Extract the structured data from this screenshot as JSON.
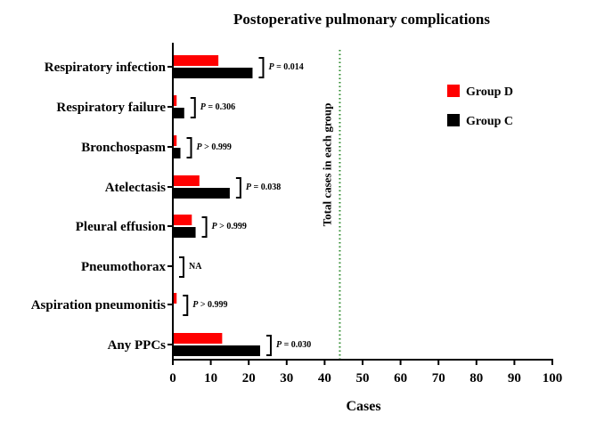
{
  "chart_data": {
    "type": "bar",
    "orientation": "horizontal",
    "title": "Postoperative pulmonary complications",
    "xlabel": "Cases",
    "ylabel": "",
    "xlim": [
      0,
      100
    ],
    "xticks": [
      0,
      10,
      20,
      30,
      40,
      50,
      60,
      70,
      80,
      90,
      100
    ],
    "categories": [
      "Respiratory infection",
      "Respiratory failure",
      "Bronchospasm",
      "Atelectasis",
      "Pleural effusion",
      "Pneumothorax",
      "Aspiration pneumonitis",
      "Any PPCs"
    ],
    "series": [
      {
        "name": "Group D",
        "color": "#ff0000",
        "values": [
          12,
          1,
          1,
          7,
          5,
          0,
          1,
          13
        ]
      },
      {
        "name": "Group C",
        "color": "#000000",
        "values": [
          21,
          3,
          2,
          15,
          6,
          0,
          0,
          23
        ]
      }
    ],
    "p_values": [
      {
        "italic": "P",
        "rest": " = 0.014"
      },
      {
        "italic": "P",
        "rest": " = 0.306"
      },
      {
        "italic": "P",
        "rest": " > 0.999"
      },
      {
        "italic": "P",
        "rest": " = 0.038"
      },
      {
        "italic": "P",
        "rest": " > 0.999"
      },
      {
        "italic": "",
        "rest": "NA"
      },
      {
        "italic": "P",
        "rest": " > 0.999"
      },
      {
        "italic": "P",
        "rest": " = 0.030"
      }
    ],
    "reference_line": {
      "value": 44,
      "label": "Total cases in each group",
      "color": "#2e8b2e"
    },
    "legend_position": "top-right"
  }
}
